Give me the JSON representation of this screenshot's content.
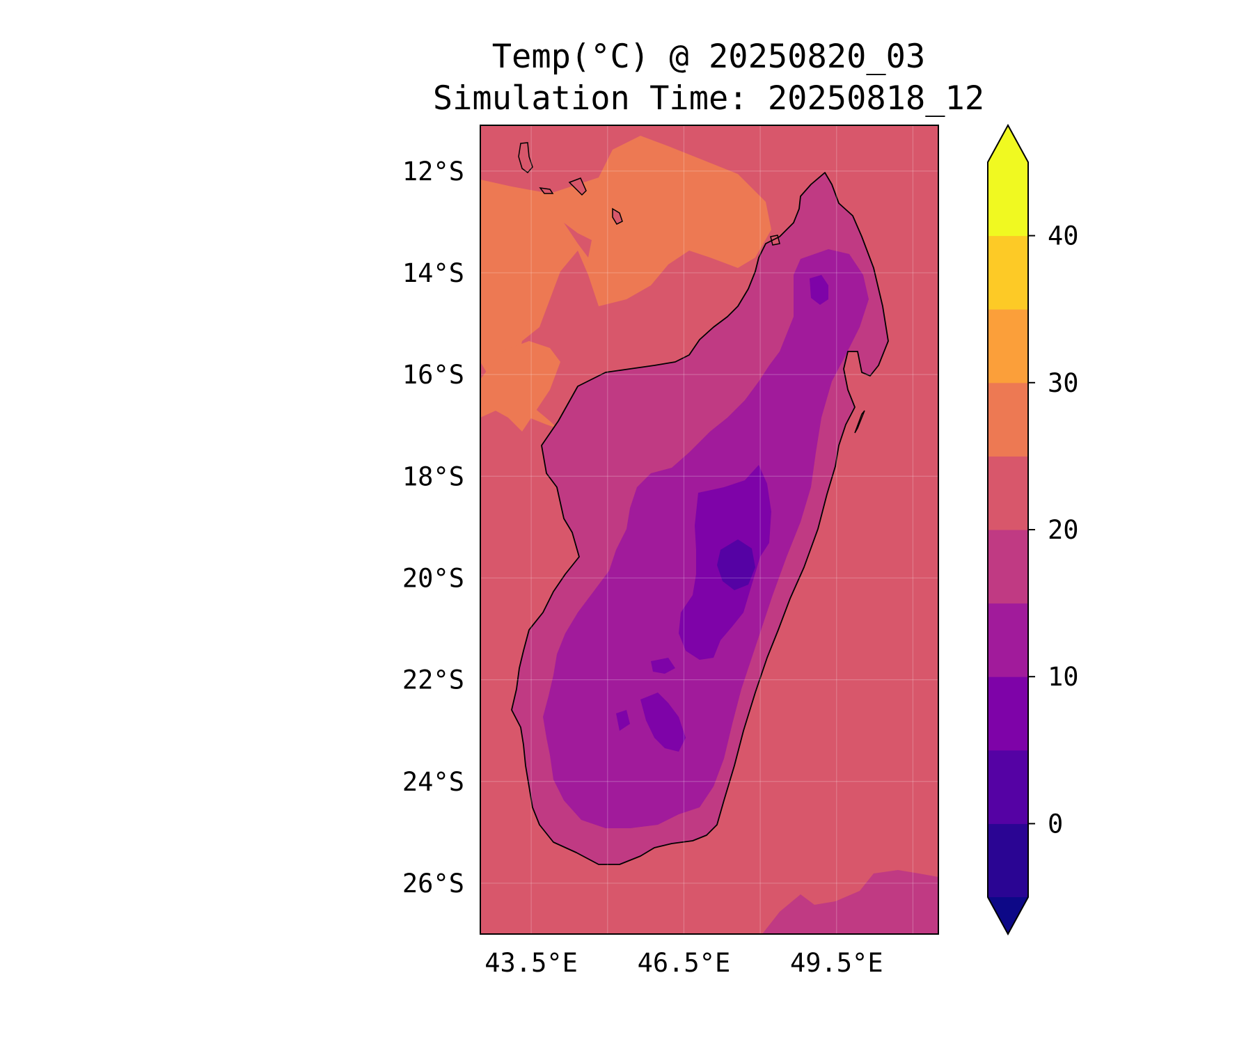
{
  "title": {
    "line1": "Temp(°C) @ 20250820_03",
    "line2": "Simulation Time: 20250818_12"
  },
  "map": {
    "region": "Madagascar",
    "lon_range": [
      42.5,
      51.5
    ],
    "lat_range": [
      -27,
      -11.1
    ],
    "lon_ticks": [
      {
        "value": 43.5,
        "label": "43.5°E"
      },
      {
        "value": 46.5,
        "label": "46.5°E"
      },
      {
        "value": 49.5,
        "label": "49.5°E"
      }
    ],
    "lat_ticks": [
      {
        "value": -12,
        "label": "12°S"
      },
      {
        "value": -14,
        "label": "14°S"
      },
      {
        "value": -16,
        "label": "16°S"
      },
      {
        "value": -18,
        "label": "18°S"
      },
      {
        "value": -20,
        "label": "20°S"
      },
      {
        "value": -22,
        "label": "22°S"
      },
      {
        "value": -24,
        "label": "24°S"
      },
      {
        "value": -26,
        "label": "26°S"
      }
    ],
    "extra_grid_lons": [
      45,
      48,
      51
    ],
    "grid": true,
    "coastline_color": "#000000"
  },
  "colorbar": {
    "levels": [
      -5,
      0,
      5,
      10,
      15,
      20,
      25,
      30,
      35,
      40,
      45
    ],
    "colors": [
      "#2a0593",
      "#5502a4",
      "#7e03a8",
      "#a11b9b",
      "#c03a83",
      "#d8576b",
      "#ed7953",
      "#fb9f3a",
      "#fdca26",
      "#f0f921"
    ],
    "under_color": "#0d0887",
    "over_color": "#f0f921",
    "extend": "both",
    "tick_labels": [
      {
        "value": 0,
        "label": "0"
      },
      {
        "value": 10,
        "label": "10"
      },
      {
        "value": 20,
        "label": "20"
      },
      {
        "value": 30,
        "label": "30"
      },
      {
        "value": 40,
        "label": "40"
      }
    ]
  },
  "chart_data": {
    "type": "heatmap",
    "variable": "Temp(°C)",
    "ocean_value_range": [
      20,
      25
    ],
    "land_value_range": [
      5,
      20
    ],
    "coldest_region": "central highlands near 47°E, 19°S–21°S, around 0–5°C",
    "warmer_band_value_range": [
      25,
      30
    ]
  }
}
